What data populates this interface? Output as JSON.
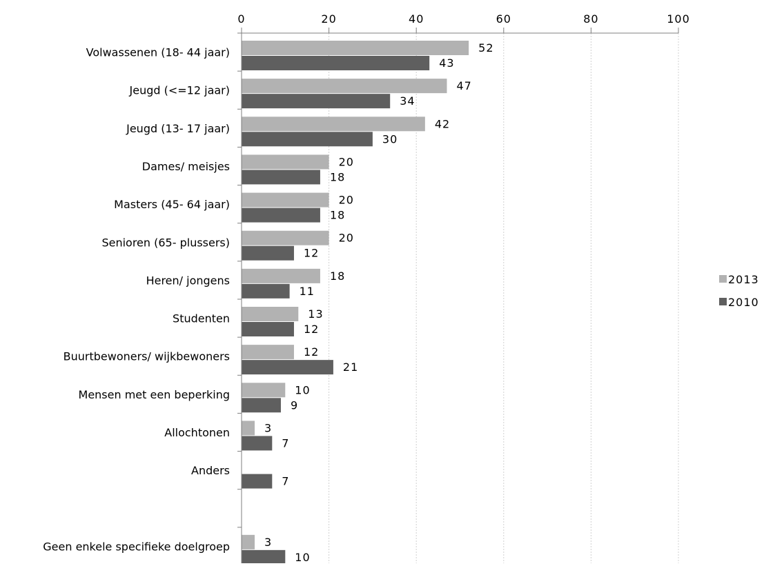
{
  "chart_data": {
    "type": "bar",
    "orientation": "horizontal",
    "categories": [
      "Volwassenen (18- 44 jaar)",
      "Jeugd (<=12 jaar)",
      "Jeugd (13- 17 jaar)",
      "Dames/ meisjes",
      "Masters (45- 64 jaar)",
      "Senioren (65- plussers)",
      "Heren/ jongens",
      "Studenten",
      "Buurtbewoners/ wijkbewoners",
      "Mensen met een beperking",
      "Allochtonen",
      "Anders",
      "",
      "Geen enkele specifieke doelgroep"
    ],
    "series": [
      {
        "name": "2013",
        "color": "#b2b2b2",
        "values": [
          52,
          47,
          42,
          20,
          20,
          20,
          18,
          13,
          12,
          10,
          3,
          null,
          null,
          3
        ]
      },
      {
        "name": "2010",
        "color": "#5f5f5f",
        "values": [
          43,
          34,
          30,
          18,
          18,
          12,
          11,
          12,
          21,
          9,
          7,
          7,
          null,
          10
        ]
      }
    ],
    "xlim": [
      0,
      100
    ],
    "xticks": [
      0,
      20,
      40,
      60,
      80,
      100
    ],
    "x_axis_position": "top",
    "grid": true,
    "legend_position": "right"
  }
}
